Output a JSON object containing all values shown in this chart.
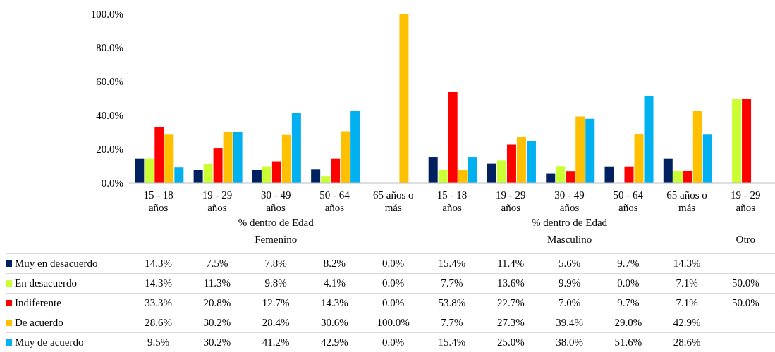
{
  "chart_data": {
    "type": "bar",
    "categories": [
      "15 - 18 años",
      "19 - 29 años",
      "30 - 49 años",
      "50 - 64 años",
      "65 años o más",
      "15 - 18 años",
      "19 - 29 años",
      "30 - 49 años",
      "50 - 64 años",
      "65 años o más",
      "19 - 29 años"
    ],
    "series": [
      {
        "name": "Muy en desacuerdo",
        "color": "#002060",
        "values": [
          14.3,
          7.5,
          7.8,
          8.2,
          0.0,
          15.4,
          11.4,
          5.6,
          9.7,
          14.3,
          null
        ],
        "value_labels": [
          "14.3%",
          "7.5%",
          "7.8%",
          "8.2%",
          "0.0%",
          "15.4%",
          "11.4%",
          "5.6%",
          "9.7%",
          "14.3%",
          null
        ]
      },
      {
        "name": "En desacuerdo",
        "color": "#ccff33",
        "values": [
          14.3,
          11.3,
          9.8,
          4.1,
          0.0,
          7.7,
          13.6,
          9.9,
          0.0,
          7.1,
          50.0
        ],
        "value_labels": [
          "14.3%",
          "11.3%",
          "9.8%",
          "4.1%",
          "0.0%",
          "7.7%",
          "13.6%",
          "9.9%",
          "0.0%",
          "7.1%",
          "50.0%"
        ]
      },
      {
        "name": "Indiferente",
        "color": "#ff0000",
        "values": [
          33.3,
          20.8,
          12.7,
          14.3,
          0.0,
          53.8,
          22.7,
          7.0,
          9.7,
          7.1,
          50.0
        ],
        "value_labels": [
          "33.3%",
          "20.8%",
          "12.7%",
          "14.3%",
          "0.0%",
          "53.8%",
          "22.7%",
          "7.0%",
          "9.7%",
          "7.1%",
          "50.0%"
        ]
      },
      {
        "name": "De acuerdo",
        "color": "#ffc000",
        "values": [
          28.6,
          30.2,
          28.4,
          30.6,
          100.0,
          7.7,
          27.3,
          39.4,
          29.0,
          42.9,
          null
        ],
        "value_labels": [
          "28.6%",
          "30.2%",
          "28.4%",
          "30.6%",
          "100.0%",
          "7.7%",
          "27.3%",
          "39.4%",
          "29.0%",
          "42.9%",
          null
        ]
      },
      {
        "name": "Muy de acuerdo",
        "color": "#00b0f0",
        "values": [
          9.5,
          30.2,
          41.2,
          42.9,
          0.0,
          15.4,
          25.0,
          38.0,
          51.6,
          28.6,
          null
        ],
        "value_labels": [
          "9.5%",
          "30.2%",
          "41.2%",
          "42.9%",
          "0.0%",
          "15.4%",
          "25.0%",
          "38.0%",
          "51.6%",
          "28.6%",
          null
        ]
      }
    ],
    "ylim": [
      0,
      100
    ],
    "yticks": [
      {
        "value": 0,
        "label": "0.0%"
      },
      {
        "value": 20,
        "label": "20.0%"
      },
      {
        "value": 40,
        "label": "40.0%"
      },
      {
        "value": 60,
        "label": "60.0%"
      },
      {
        "value": 80,
        "label": "80.0%"
      },
      {
        "value": 100,
        "label": "100.0%"
      }
    ],
    "annotations": [
      "% dentro de Edad",
      "Femenino",
      "% dentro de Edad",
      "Masculino",
      "Otro"
    ],
    "legend": "bottom"
  }
}
